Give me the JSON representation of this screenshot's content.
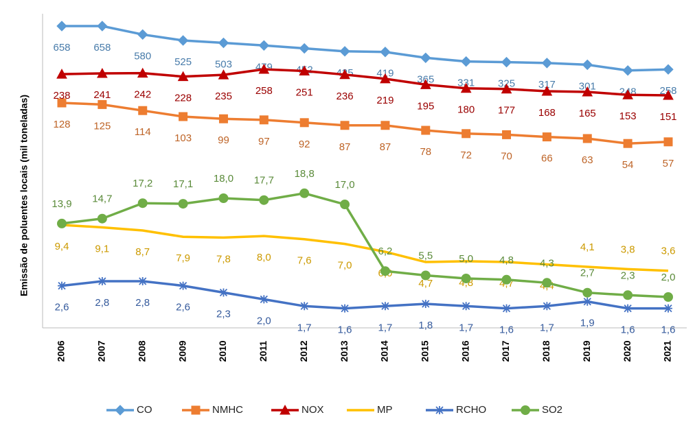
{
  "chart_data": {
    "type": "line",
    "y_label": "Emissão de poluentes locais (mil toneladas)",
    "categories": [
      "2006",
      "2007",
      "2008",
      "2009",
      "2010",
      "2011",
      "2012",
      "2013",
      "2014",
      "2015",
      "2016",
      "2017",
      "2018",
      "2019",
      "2020",
      "2021"
    ],
    "series": [
      {
        "name": "CO",
        "color": "#5b9bd5",
        "marker": "diamond",
        "values": [
          658,
          658,
          580,
          525,
          503,
          479,
          452,
          425,
          419,
          365,
          331,
          325,
          317,
          301,
          248,
          258
        ]
      },
      {
        "name": "NMHC",
        "color": "#ed7d31",
        "marker": "square",
        "values": [
          128,
          125,
          114,
          103,
          99,
          97,
          92,
          87,
          87,
          78,
          72,
          70,
          66,
          63,
          54,
          57
        ]
      },
      {
        "name": "NOX",
        "color": "#c00000",
        "marker": "triangle",
        "values": [
          238,
          241,
          242,
          228,
          235,
          258,
          251,
          236,
          219,
          195,
          180,
          177,
          168,
          165,
          153,
          151
        ]
      },
      {
        "name": "MP",
        "color": "#ffc000",
        "marker": "none",
        "values": [
          9.4,
          9.1,
          8.7,
          7.9,
          7.8,
          8.0,
          7.6,
          7.0,
          6.0,
          4.7,
          4.8,
          4.7,
          4.4,
          4.1,
          3.8,
          3.6
        ],
        "value_labels": [
          "9,4",
          "9,1",
          "8,7",
          "7,9",
          "7,8",
          "8,0",
          "7,6",
          "7,0",
          "6,0",
          "4,7",
          "4,8",
          "4,7",
          "4,4",
          "4,1",
          "3,8",
          "3,6"
        ]
      },
      {
        "name": "RCHO",
        "color": "#4472c4",
        "marker": "star",
        "values": [
          2.6,
          2.8,
          2.8,
          2.6,
          2.3,
          2.0,
          1.7,
          1.6,
          1.7,
          1.8,
          1.7,
          1.6,
          1.7,
          1.9,
          1.6,
          1.6
        ],
        "value_labels": [
          "2,6",
          "2,8",
          "2,8",
          "2,6",
          "2,3",
          "2,0",
          "1,7",
          "1,6",
          "1,7",
          "1,8",
          "1,7",
          "1,6",
          "1,7",
          "1,9",
          "1,6",
          "1,6"
        ]
      },
      {
        "name": "SO2",
        "color": "#70ad47",
        "marker": "circle",
        "values": [
          13.9,
          14.7,
          17.2,
          17.1,
          18.0,
          17.7,
          18.8,
          17.0,
          6.2,
          5.5,
          5.0,
          4.8,
          4.3,
          2.7,
          2.3,
          2.0
        ],
        "value_labels": [
          "13,9",
          "14,7",
          "17,2",
          "17,1",
          "18,0",
          "17,7",
          "18,8",
          "17,0",
          "6,2",
          "5,5",
          "5,0",
          "4,8",
          "4,3",
          "2,7",
          "2,3",
          "2,0"
        ]
      }
    ]
  }
}
